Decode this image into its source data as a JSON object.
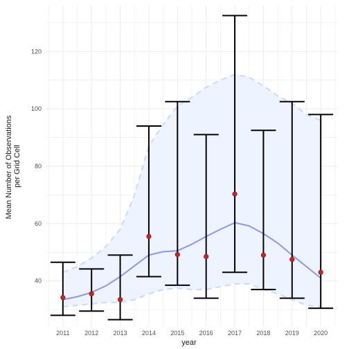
{
  "chart_data": {
    "type": "scatter",
    "xlabel": "year",
    "ylabel_lines": [
      "Mean Number of Observations",
      "per Grid Cell"
    ],
    "categories": [
      "2011",
      "2012",
      "2013",
      "2014",
      "2015",
      "2016",
      "2017",
      "2018",
      "2019",
      "2020"
    ],
    "x_range": [
      2010.4,
      2020.6
    ],
    "y_range": [
      24,
      136
    ],
    "y_ticks": [
      40,
      60,
      80,
      100,
      120
    ],
    "grid": true,
    "series": [
      {
        "points": [
          34.2,
          35.5,
          33.5,
          55.5,
          49.2,
          48.5,
          70.3,
          49.0,
          47.5,
          43.0
        ],
        "error_upper": [
          46.5,
          44.2,
          49.0,
          94.0,
          102.5,
          91.0,
          132.5,
          92.5,
          102.5,
          98.0
        ],
        "error_lower": [
          28.0,
          29.5,
          26.5,
          41.5,
          38.5,
          34.0,
          43.0,
          37.0,
          34.0,
          30.5
        ]
      }
    ],
    "smooth": {
      "x": [
        2011,
        2011.5,
        2012,
        2012.5,
        2013,
        2013.5,
        2014,
        2014.5,
        2015,
        2015.5,
        2016,
        2016.5,
        2017,
        2017.5,
        2018,
        2018.5,
        2019,
        2019.5,
        2020
      ],
      "fit": [
        33.5,
        34.5,
        36.0,
        38.3,
        41.5,
        45.3,
        49.0,
        50.2,
        50.5,
        52.8,
        55.5,
        58.0,
        60.3,
        59.2,
        56.5,
        53.2,
        49.0,
        45.0,
        41.0
      ],
      "upper": [
        43.0,
        45.0,
        48.0,
        52.0,
        58.0,
        70.0,
        87.0,
        94.5,
        101.0,
        104.0,
        107.5,
        110.0,
        112.0,
        111.0,
        108.0,
        104.5,
        102.0,
        98.0,
        96.0
      ],
      "lower": [
        31.0,
        31.5,
        32.0,
        32.5,
        32.5,
        33.5,
        35.5,
        37.0,
        37.5,
        37.0,
        37.0,
        38.0,
        39.0,
        39.0,
        37.0,
        35.5,
        33.5,
        31.5,
        31.0
      ]
    },
    "colors": {
      "point": "#cc2222",
      "error_bar": "#000000",
      "fit_line": "#8e95e8",
      "ribbon_fill": "#eef4ff",
      "ribbon_edge": "#c7daf9",
      "grid": "#ebebeb"
    }
  }
}
